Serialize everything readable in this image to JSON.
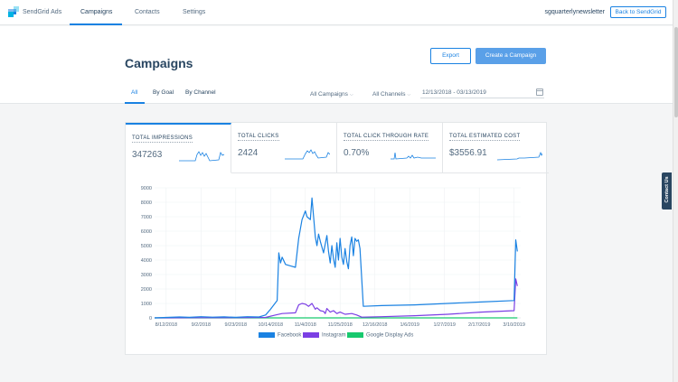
{
  "nav": {
    "brand": "SendGrid Ads",
    "tabs": [
      "Campaigns",
      "Contacts",
      "Settings"
    ],
    "username": "sgquarterlynewsletter",
    "back_label": "Back to SendGrid"
  },
  "header": {
    "title": "Campaigns",
    "export_label": "Export",
    "create_label": "Create a Campaign",
    "subtabs": [
      "All",
      "By Goal",
      "By Channel"
    ],
    "filter_campaigns": "All Campaigns",
    "filter_channels": "All Channels",
    "date_range": "12/13/2018 - 03/13/2019"
  },
  "stats": [
    {
      "label": "TOTAL IMPRESSIONS",
      "value": "347263"
    },
    {
      "label": "TOTAL CLICKS",
      "value": "2424"
    },
    {
      "label": "TOTAL CLICK THROUGH RATE",
      "value": "0.70%"
    },
    {
      "label": "TOTAL ESTIMATED COST",
      "value": "$3556.91"
    }
  ],
  "contact_tab": "Contact Us",
  "colors": {
    "accent": "#1a82e2",
    "facebook": "#1a82e2",
    "instagram": "#7b3fe4",
    "google": "#18c96e"
  },
  "chart_data": {
    "type": "line",
    "x_tick_labels": [
      "8/12/2018",
      "9/2/2018",
      "9/23/2018",
      "10/14/2018",
      "11/4/2018",
      "11/25/2018",
      "12/16/2018",
      "1/6/2019",
      "1/27/2019",
      "2/17/2019",
      "3/10/2019"
    ],
    "x_ticks_day_offsets": [
      0,
      21,
      42,
      63,
      84,
      105,
      126,
      147,
      168,
      189,
      210
    ],
    "ylim": [
      0,
      9000
    ],
    "y_ticks": [
      0,
      1000,
      2000,
      3000,
      4000,
      5000,
      6000,
      7000,
      8000,
      9000
    ],
    "xlim_days": [
      -7,
      214
    ],
    "grid": true,
    "legend_position": "bottom",
    "series": [
      {
        "name": "Facebook",
        "points": [
          [
            -7,
            0
          ],
          [
            0,
            30
          ],
          [
            8,
            60
          ],
          [
            14,
            40
          ],
          [
            21,
            80
          ],
          [
            28,
            50
          ],
          [
            35,
            70
          ],
          [
            42,
            40
          ],
          [
            49,
            80
          ],
          [
            56,
            60
          ],
          [
            60,
            200
          ],
          [
            63,
            600
          ],
          [
            67,
            1200
          ],
          [
            68,
            4500
          ],
          [
            69,
            3800
          ],
          [
            70,
            4200
          ],
          [
            72,
            3700
          ],
          [
            75,
            3600
          ],
          [
            78,
            3500
          ],
          [
            80,
            5500
          ],
          [
            82,
            6800
          ],
          [
            84,
            7400
          ],
          [
            85,
            7000
          ],
          [
            87,
            6800
          ],
          [
            88,
            8300
          ],
          [
            89,
            7000
          ],
          [
            90,
            5600
          ],
          [
            91,
            5000
          ],
          [
            92,
            5800
          ],
          [
            93,
            5300
          ],
          [
            95,
            4500
          ],
          [
            97,
            5700
          ],
          [
            98,
            4600
          ],
          [
            99,
            3800
          ],
          [
            100,
            5000
          ],
          [
            101,
            4100
          ],
          [
            102,
            3500
          ],
          [
            103,
            5200
          ],
          [
            104,
            4000
          ],
          [
            105,
            5500
          ],
          [
            106,
            4200
          ],
          [
            107,
            3700
          ],
          [
            108,
            4800
          ],
          [
            109,
            3900
          ],
          [
            110,
            3400
          ],
          [
            111,
            5000
          ],
          [
            112,
            5600
          ],
          [
            113,
            4300
          ],
          [
            114,
            5500
          ],
          [
            115,
            5300
          ],
          [
            116,
            5400
          ],
          [
            117,
            4800
          ],
          [
            119,
            800
          ],
          [
            130,
            850
          ],
          [
            150,
            900
          ],
          [
            170,
            1000
          ],
          [
            190,
            1100
          ],
          [
            210,
            1200
          ],
          [
            211,
            5400
          ],
          [
            212,
            4600
          ]
        ]
      },
      {
        "name": "Instagram",
        "points": [
          [
            -7,
            0
          ],
          [
            20,
            10
          ],
          [
            40,
            15
          ],
          [
            60,
            30
          ],
          [
            66,
            200
          ],
          [
            70,
            300
          ],
          [
            78,
            350
          ],
          [
            80,
            900
          ],
          [
            82,
            1000
          ],
          [
            84,
            950
          ],
          [
            86,
            800
          ],
          [
            88,
            1000
          ],
          [
            90,
            600
          ],
          [
            91,
            700
          ],
          [
            93,
            500
          ],
          [
            95,
            450
          ],
          [
            96,
            300
          ],
          [
            97,
            650
          ],
          [
            99,
            400
          ],
          [
            101,
            500
          ],
          [
            103,
            300
          ],
          [
            105,
            400
          ],
          [
            108,
            250
          ],
          [
            112,
            300
          ],
          [
            115,
            200
          ],
          [
            118,
            50
          ],
          [
            130,
            80
          ],
          [
            150,
            150
          ],
          [
            170,
            250
          ],
          [
            190,
            400
          ],
          [
            210,
            500
          ],
          [
            211,
            2700
          ],
          [
            212,
            2200
          ]
        ]
      },
      {
        "name": "Google Display Ads",
        "points": [
          [
            -7,
            0
          ],
          [
            212,
            0
          ]
        ]
      }
    ]
  }
}
